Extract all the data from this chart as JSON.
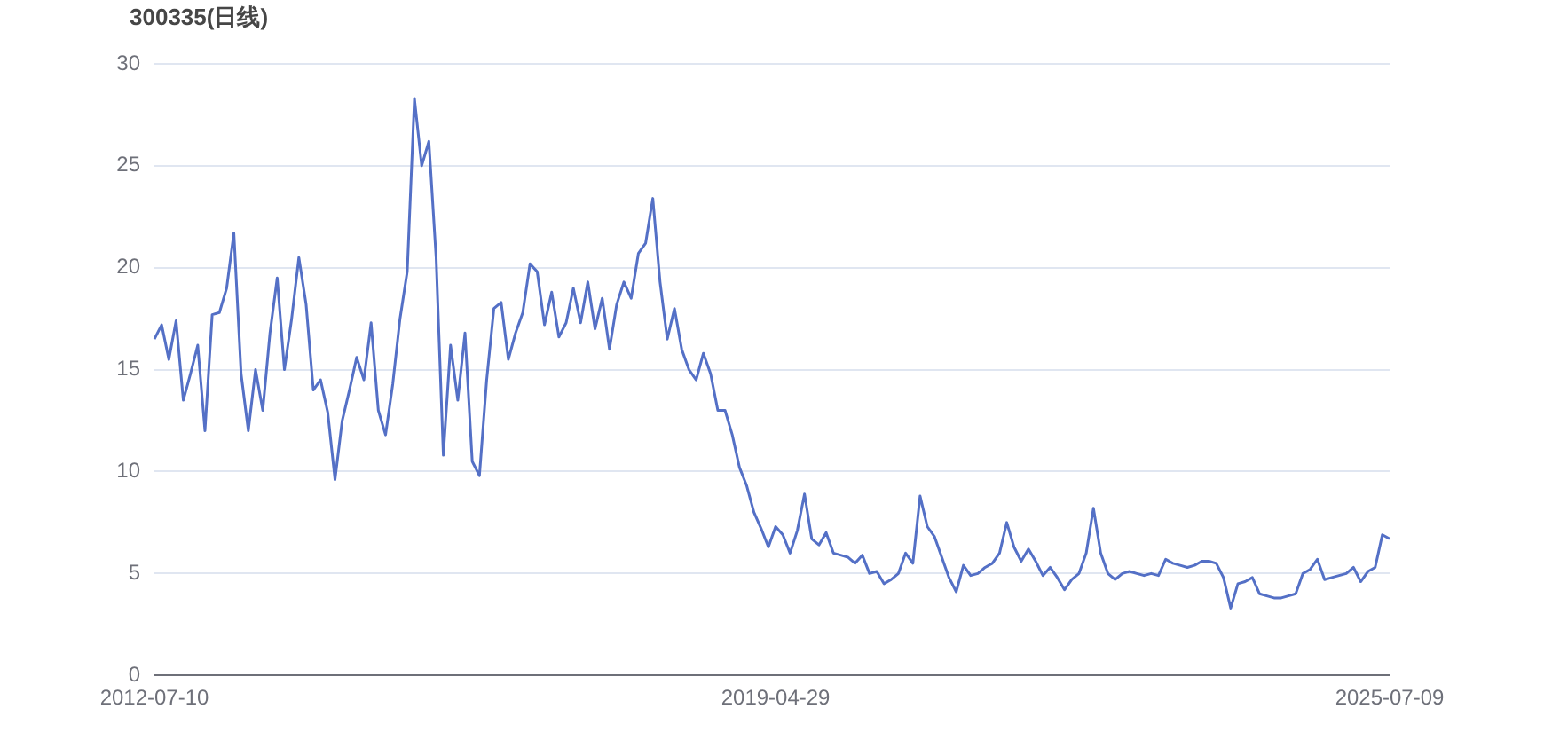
{
  "chart_data": {
    "type": "line",
    "title": "300335(日线)",
    "categories": [
      "2012-07-10",
      null,
      null,
      null,
      null,
      null,
      null,
      null,
      null,
      null,
      null,
      null,
      null,
      null,
      null,
      null,
      null,
      null,
      null,
      null,
      null,
      null,
      null,
      null,
      null,
      null,
      null,
      null,
      null,
      null,
      null,
      null,
      null,
      null,
      null,
      null,
      null,
      null,
      null,
      null,
      null,
      null,
      null,
      null,
      null,
      null,
      null,
      null,
      null,
      null,
      null,
      null,
      null,
      null,
      null,
      null,
      null,
      null,
      null,
      null,
      null,
      null,
      null,
      null,
      null,
      null,
      null,
      null,
      null,
      null,
      null,
      null,
      null,
      null,
      null,
      null,
      null,
      null,
      null,
      null,
      null,
      null,
      null,
      null,
      null,
      null,
      "2019-04-29",
      null,
      null,
      null,
      null,
      null,
      null,
      null,
      null,
      null,
      null,
      null,
      null,
      null,
      null,
      null,
      null,
      null,
      null,
      null,
      null,
      null,
      null,
      null,
      null,
      null,
      null,
      null,
      null,
      null,
      null,
      null,
      null,
      null,
      null,
      null,
      null,
      null,
      null,
      null,
      null,
      null,
      null,
      null,
      null,
      null,
      null,
      null,
      null,
      null,
      null,
      null,
      null,
      null,
      null,
      null,
      null,
      null,
      null,
      null,
      null,
      null,
      null,
      null,
      null,
      null,
      null,
      null,
      null,
      null,
      null,
      null,
      null,
      null,
      null,
      null,
      null,
      null,
      null,
      null,
      null,
      null,
      null,
      null,
      null,
      "2025-07-09"
    ],
    "values": [
      16.5,
      17.2,
      15.5,
      17.4,
      13.5,
      14.8,
      16.2,
      12.0,
      17.7,
      17.8,
      19.0,
      21.7,
      14.8,
      12.0,
      15.0,
      13.0,
      16.8,
      19.5,
      15.0,
      17.5,
      20.5,
      18.2,
      14.0,
      14.5,
      12.9,
      9.6,
      12.5,
      14.0,
      15.6,
      14.5,
      17.3,
      13.0,
      11.8,
      14.3,
      17.5,
      19.8,
      28.3,
      25.0,
      26.2,
      20.5,
      10.8,
      16.2,
      13.5,
      16.8,
      10.5,
      9.8,
      14.5,
      18.0,
      18.3,
      15.5,
      16.8,
      17.8,
      20.2,
      19.8,
      17.2,
      18.8,
      16.6,
      17.3,
      19.0,
      17.3,
      19.3,
      17.0,
      18.5,
      16.0,
      18.2,
      19.3,
      18.5,
      20.7,
      21.2,
      23.4,
      19.3,
      16.5,
      18.0,
      16.0,
      15.0,
      14.5,
      15.8,
      14.8,
      13.0,
      13.0,
      11.8,
      10.2,
      9.3,
      8.0,
      7.2,
      6.3,
      7.3,
      6.9,
      6.0,
      7.1,
      8.9,
      6.7,
      6.4,
      7.0,
      6.0,
      5.9,
      5.8,
      5.5,
      5.9,
      5.0,
      5.1,
      4.5,
      4.7,
      5.0,
      6.0,
      5.5,
      8.8,
      7.3,
      6.8,
      5.8,
      4.8,
      4.1,
      5.4,
      4.9,
      5.0,
      5.3,
      5.5,
      6.0,
      7.5,
      6.3,
      5.6,
      6.2,
      5.6,
      4.9,
      5.3,
      4.8,
      4.2,
      4.7,
      5.0,
      6.0,
      8.2,
      6.0,
      5.0,
      4.7,
      5.0,
      5.1,
      5.0,
      4.9,
      5.0,
      4.9,
      5.7,
      5.5,
      5.4,
      5.3,
      5.4,
      5.6,
      5.6,
      5.5,
      4.8,
      3.3,
      4.5,
      4.6,
      4.8,
      4.0,
      3.9,
      3.8,
      3.8,
      3.9,
      4.0,
      5.0,
      5.2,
      5.7,
      4.7,
      4.8,
      4.9,
      5.0,
      5.3,
      4.6,
      5.1,
      5.3,
      6.9,
      6.7
    ],
    "color": "#5470c6",
    "ylim": [
      0,
      30
    ],
    "yticks": [
      0,
      5,
      10,
      15,
      20,
      25,
      30
    ],
    "grid": "y",
    "marker": "none",
    "line_style": "solid"
  }
}
